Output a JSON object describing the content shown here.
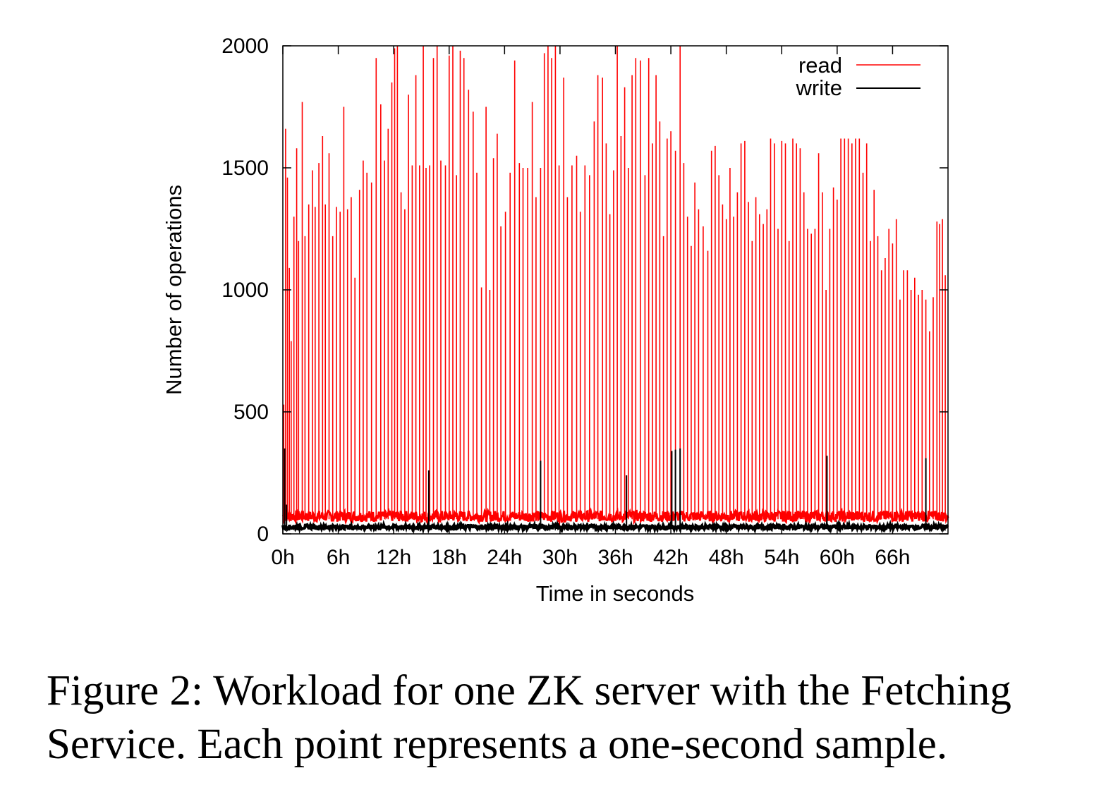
{
  "caption": {
    "line1": "Figure 2: Workload for one ZK server with the Fetching",
    "line2": "Service. Each point represents a one-second sample."
  },
  "chart_data": {
    "type": "line",
    "title": "",
    "xlabel": "Time in seconds",
    "ylabel": "Number of operations",
    "xlim": [
      0,
      72
    ],
    "ylim": [
      0,
      2000
    ],
    "x_unit": "hours",
    "x_ticks": [
      0,
      6,
      12,
      18,
      24,
      30,
      36,
      42,
      48,
      54,
      60,
      66
    ],
    "x_tick_labels": [
      "0h",
      "6h",
      "12h",
      "18h",
      "24h",
      "30h",
      "36h",
      "42h",
      "48h",
      "54h",
      "60h",
      "66h"
    ],
    "y_ticks": [
      0,
      500,
      1000,
      1500,
      2000
    ],
    "y_tick_labels": [
      "0",
      "500",
      "1000",
      "1500",
      "2000"
    ],
    "grid": false,
    "legend_position": "top-right",
    "series": [
      {
        "name": "read",
        "color": "#ff0000",
        "baseline": 60,
        "spikes": [
          [
            0.1,
            530
          ],
          [
            0.3,
            1660
          ],
          [
            0.5,
            1460
          ],
          [
            0.7,
            1090
          ],
          [
            0.9,
            790
          ],
          [
            1.2,
            1300
          ],
          [
            1.5,
            1580
          ],
          [
            1.7,
            1200
          ],
          [
            2.1,
            1770
          ],
          [
            2.4,
            1220
          ],
          [
            2.8,
            1350
          ],
          [
            3.2,
            1490
          ],
          [
            3.5,
            1340
          ],
          [
            3.9,
            1520
          ],
          [
            4.3,
            1630
          ],
          [
            4.6,
            1350
          ],
          [
            5.0,
            1560
          ],
          [
            5.4,
            1220
          ],
          [
            5.8,
            1340
          ],
          [
            6.2,
            1320
          ],
          [
            6.6,
            1750
          ],
          [
            7.0,
            1330
          ],
          [
            7.4,
            1380
          ],
          [
            7.8,
            1050
          ],
          [
            8.3,
            1410
          ],
          [
            8.7,
            1530
          ],
          [
            9.1,
            1480
          ],
          [
            9.6,
            1440
          ],
          [
            10.1,
            1950
          ],
          [
            10.6,
            1760
          ],
          [
            11.0,
            1530
          ],
          [
            11.4,
            1660
          ],
          [
            11.8,
            1850
          ],
          [
            12.1,
            1990
          ],
          [
            12.4,
            2000
          ],
          [
            12.8,
            1400
          ],
          [
            13.2,
            1330
          ],
          [
            13.6,
            1800
          ],
          [
            14.0,
            1510
          ],
          [
            14.4,
            1880
          ],
          [
            14.8,
            1510
          ],
          [
            15.2,
            2000
          ],
          [
            15.5,
            1500
          ],
          [
            15.9,
            1510
          ],
          [
            16.3,
            1950
          ],
          [
            16.7,
            2000
          ],
          [
            17.1,
            1530
          ],
          [
            17.6,
            1510
          ],
          [
            18.0,
            1960
          ],
          [
            18.4,
            2000
          ],
          [
            18.8,
            1470
          ],
          [
            19.2,
            1980
          ],
          [
            19.6,
            1950
          ],
          [
            20.1,
            1820
          ],
          [
            20.6,
            1730
          ],
          [
            21.0,
            1480
          ],
          [
            21.5,
            1010
          ],
          [
            22.0,
            1750
          ],
          [
            22.4,
            1000
          ],
          [
            22.8,
            1540
          ],
          [
            23.2,
            1640
          ],
          [
            23.6,
            1260
          ],
          [
            24.1,
            1320
          ],
          [
            24.6,
            1480
          ],
          [
            25.1,
            1940
          ],
          [
            25.6,
            1520
          ],
          [
            26.0,
            1500
          ],
          [
            26.5,
            1500
          ],
          [
            27.0,
            1770
          ],
          [
            27.4,
            1380
          ],
          [
            27.9,
            1500
          ],
          [
            28.3,
            1970
          ],
          [
            28.7,
            2000
          ],
          [
            29.1,
            1950
          ],
          [
            29.5,
            2000
          ],
          [
            29.9,
            1510
          ],
          [
            30.4,
            1870
          ],
          [
            30.8,
            1380
          ],
          [
            31.3,
            1510
          ],
          [
            31.8,
            1550
          ],
          [
            32.2,
            1320
          ],
          [
            32.7,
            1510
          ],
          [
            33.2,
            1470
          ],
          [
            33.7,
            1690
          ],
          [
            34.1,
            1880
          ],
          [
            34.6,
            1870
          ],
          [
            35.0,
            1600
          ],
          [
            35.4,
            1310
          ],
          [
            35.8,
            1490
          ],
          [
            36.2,
            2000
          ],
          [
            36.6,
            1630
          ],
          [
            37.0,
            1830
          ],
          [
            37.4,
            1500
          ],
          [
            37.8,
            1880
          ],
          [
            38.2,
            1950
          ],
          [
            38.7,
            1940
          ],
          [
            39.2,
            1470
          ],
          [
            39.6,
            1950
          ],
          [
            40.0,
            1600
          ],
          [
            40.4,
            1880
          ],
          [
            40.8,
            1690
          ],
          [
            41.2,
            1220
          ],
          [
            41.6,
            1620
          ],
          [
            42.0,
            1650
          ],
          [
            42.5,
            1570
          ],
          [
            43.0,
            2000
          ],
          [
            43.4,
            1520
          ],
          [
            43.8,
            1300
          ],
          [
            44.2,
            1180
          ],
          [
            44.6,
            1440
          ],
          [
            45.0,
            1330
          ],
          [
            45.5,
            1260
          ],
          [
            46.0,
            1160
          ],
          [
            46.4,
            1570
          ],
          [
            46.8,
            1590
          ],
          [
            47.2,
            1470
          ],
          [
            47.6,
            1350
          ],
          [
            48.0,
            1290
          ],
          [
            48.4,
            1500
          ],
          [
            48.8,
            1300
          ],
          [
            49.2,
            1400
          ],
          [
            49.6,
            1600
          ],
          [
            50.0,
            1610
          ],
          [
            50.4,
            1360
          ],
          [
            50.8,
            1200
          ],
          [
            51.2,
            1380
          ],
          [
            51.6,
            1310
          ],
          [
            52.0,
            1270
          ],
          [
            52.4,
            1330
          ],
          [
            52.8,
            1620
          ],
          [
            53.2,
            1600
          ],
          [
            53.6,
            1250
          ],
          [
            54.0,
            1610
          ],
          [
            54.4,
            1600
          ],
          [
            54.8,
            1200
          ],
          [
            55.2,
            1620
          ],
          [
            55.6,
            1600
          ],
          [
            56.0,
            1580
          ],
          [
            56.4,
            1400
          ],
          [
            56.8,
            1250
          ],
          [
            57.2,
            1230
          ],
          [
            57.6,
            1250
          ],
          [
            58.0,
            1560
          ],
          [
            58.4,
            1400
          ],
          [
            58.8,
            1000
          ],
          [
            59.2,
            1250
          ],
          [
            59.6,
            1420
          ],
          [
            60.0,
            1370
          ],
          [
            60.4,
            1620
          ],
          [
            60.8,
            1620
          ],
          [
            61.2,
            1620
          ],
          [
            61.6,
            1600
          ],
          [
            62.0,
            1620
          ],
          [
            62.4,
            1620
          ],
          [
            62.8,
            1480
          ],
          [
            63.2,
            1600
          ],
          [
            63.6,
            1200
          ],
          [
            64.0,
            1410
          ],
          [
            64.4,
            1220
          ],
          [
            64.8,
            1080
          ],
          [
            65.2,
            1130
          ],
          [
            65.6,
            1250
          ],
          [
            66.0,
            1190
          ],
          [
            66.4,
            1290
          ],
          [
            66.8,
            960
          ],
          [
            67.2,
            1080
          ],
          [
            67.6,
            1080
          ],
          [
            68.0,
            1000
          ],
          [
            68.4,
            1050
          ],
          [
            68.8,
            980
          ],
          [
            69.2,
            1000
          ],
          [
            69.6,
            960
          ],
          [
            70.0,
            830
          ],
          [
            70.4,
            970
          ],
          [
            70.8,
            1280
          ],
          [
            71.1,
            1270
          ],
          [
            71.4,
            1290
          ],
          [
            71.7,
            1060
          ]
        ]
      },
      {
        "name": "write",
        "color": "#000000",
        "baseline": 25,
        "spikes": [
          [
            0.2,
            350
          ],
          [
            0.4,
            120
          ],
          [
            15.8,
            260
          ],
          [
            27.9,
            300
          ],
          [
            37.2,
            240
          ],
          [
            42.1,
            340
          ],
          [
            42.5,
            345
          ],
          [
            43.0,
            350
          ],
          [
            58.9,
            320
          ],
          [
            69.6,
            310
          ]
        ]
      }
    ]
  }
}
